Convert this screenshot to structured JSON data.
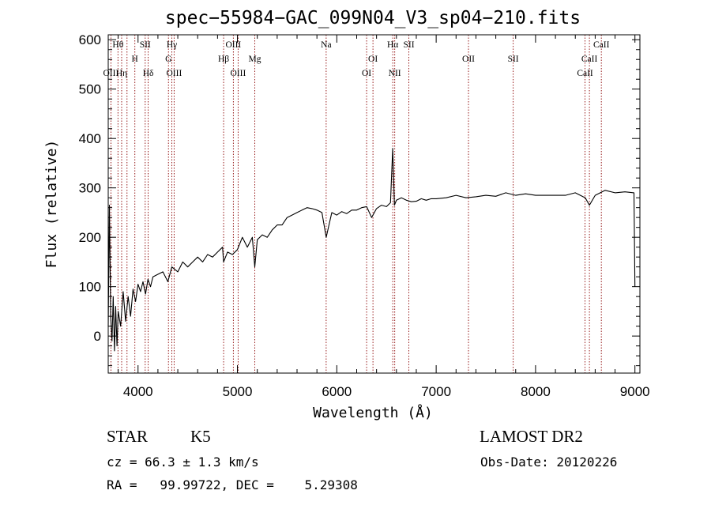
{
  "chart_data": {
    "type": "line",
    "title": "spec−55984−GAC_099N04_V3_sp04−210.fits",
    "xlabel": "Wavelength (Å)",
    "ylabel": "Flux (relative)",
    "xlim": [
      3700,
      9050
    ],
    "ylim": [
      -75,
      610
    ],
    "x_ticks": [
      4000,
      5000,
      6000,
      7000,
      8000,
      9000
    ],
    "y_ticks": [
      0,
      100,
      200,
      300,
      400,
      500,
      600
    ],
    "grid": false,
    "series": [
      {
        "x": [
          3700,
          3712,
          3725,
          3738,
          3750,
          3763,
          3775,
          3788,
          3800,
          3825,
          3850,
          3875,
          3900,
          3925,
          3950,
          3975,
          4000,
          4025,
          4050,
          4075,
          4100,
          4125,
          4150,
          4200,
          4250,
          4300,
          4340,
          4400,
          4450,
          4500,
          4550,
          4600,
          4650,
          4700,
          4750,
          4800,
          4850,
          4861,
          4900,
          4950,
          5000,
          5050,
          5100,
          5150,
          5175,
          5200,
          5250,
          5300,
          5350,
          5400,
          5450,
          5500,
          5550,
          5600,
          5650,
          5700,
          5750,
          5800,
          5850,
          5893,
          5950,
          6000,
          6050,
          6100,
          6150,
          6200,
          6250,
          6300,
          6350,
          6400,
          6450,
          6500,
          6540,
          6563,
          6580,
          6600,
          6650,
          6700,
          6750,
          6800,
          6850,
          6900,
          6950,
          7000,
          7100,
          7200,
          7300,
          7400,
          7500,
          7600,
          7700,
          7800,
          7900,
          8000,
          8100,
          8200,
          8300,
          8400,
          8500,
          8542,
          8600,
          8700,
          8800,
          8900,
          8990,
          9000
        ],
        "y": [
          20,
          265,
          40,
          -10,
          80,
          -30,
          60,
          -20,
          50,
          20,
          90,
          30,
          80,
          40,
          95,
          70,
          105,
          90,
          110,
          85,
          115,
          100,
          120,
          125,
          130,
          110,
          140,
          130,
          150,
          140,
          150,
          160,
          150,
          165,
          160,
          170,
          180,
          150,
          170,
          165,
          175,
          200,
          180,
          200,
          140,
          195,
          205,
          200,
          215,
          225,
          225,
          240,
          245,
          250,
          255,
          260,
          258,
          255,
          250,
          200,
          250,
          245,
          252,
          248,
          255,
          255,
          260,
          262,
          240,
          258,
          265,
          262,
          270,
          380,
          265,
          275,
          280,
          275,
          272,
          273,
          278,
          275,
          278,
          278,
          280,
          285,
          280,
          282,
          285,
          283,
          290,
          285,
          288,
          285,
          285,
          285,
          285,
          290,
          280,
          265,
          285,
          295,
          290,
          292,
          290,
          100
        ]
      }
    ],
    "annotations": [
      {
        "label": "Hθ",
        "x": 3798,
        "row": 0
      },
      {
        "label": "OIII",
        "x": 3727,
        "row": 2
      },
      {
        "label": "Hη",
        "x": 3835,
        "row": 2
      },
      {
        "label": "H",
        "x": 3968,
        "row": 1
      },
      {
        "label": "SII",
        "x": 4072,
        "row": 0
      },
      {
        "label": "Hδ",
        "x": 4102,
        "row": 2
      },
      {
        "label": "Hγ",
        "x": 4340,
        "row": 0
      },
      {
        "label": "G",
        "x": 4306,
        "row": 1
      },
      {
        "label": "OIII",
        "x": 4363,
        "row": 2
      },
      {
        "label": "OIII",
        "x": 4959,
        "row": 0
      },
      {
        "label": "Hβ",
        "x": 4861,
        "row": 1
      },
      {
        "label": "OIII",
        "x": 5007,
        "row": 2
      },
      {
        "label": "Mg",
        "x": 5175,
        "row": 1
      },
      {
        "label": "Na",
        "x": 5893,
        "row": 0
      },
      {
        "label": "OI",
        "x": 6364,
        "row": 1
      },
      {
        "label": "OI",
        "x": 6300,
        "row": 2
      },
      {
        "label": "Hα",
        "x": 6563,
        "row": 0
      },
      {
        "label": "SII",
        "x": 6725,
        "row": 0
      },
      {
        "label": "NII",
        "x": 6583,
        "row": 2
      },
      {
        "label": "OII",
        "x": 7325,
        "row": 1
      },
      {
        "label": "SII",
        "x": 7775,
        "row": 1
      },
      {
        "label": "CaII",
        "x": 8662,
        "row": 0
      },
      {
        "label": "CaII",
        "x": 8542,
        "row": 1
      },
      {
        "label": "CaII",
        "x": 8498,
        "row": 2
      }
    ],
    "line_markers": [
      3727,
      3798,
      3835,
      3889,
      3968,
      4072,
      4102,
      4306,
      4340,
      4363,
      4861,
      4959,
      5007,
      5175,
      5893,
      6300,
      6364,
      6563,
      6583,
      6725,
      7325,
      7775,
      8498,
      8542,
      8662
    ]
  },
  "info": {
    "class": "STAR",
    "subclass": "K5",
    "survey": "LAMOST DR2",
    "cz": "cz = 66.3 ± 1.3 km/s",
    "obs_date": "Obs-Date: 20120226",
    "radec": "RA =   99.99722, DEC =    5.29308"
  }
}
